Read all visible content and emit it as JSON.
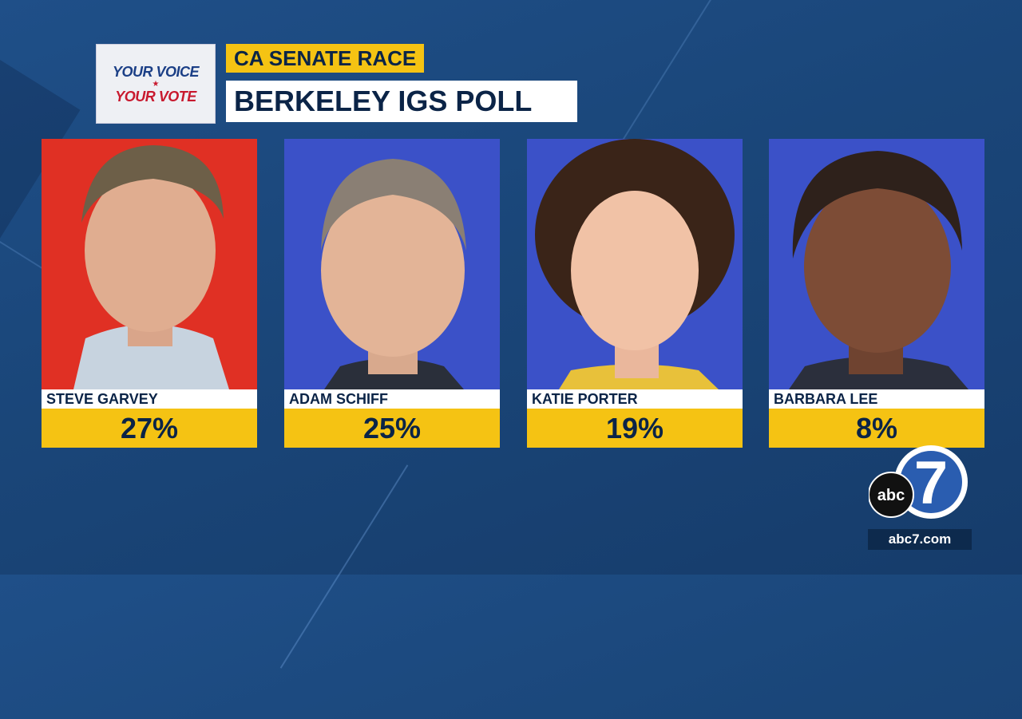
{
  "logo": {
    "line1": "YOUR VOICE",
    "line2": "YOUR VOTE"
  },
  "header": {
    "race_label": "CA SENATE RACE",
    "poll_title": "BERKELEY IGS POLL"
  },
  "candidates": [
    {
      "name": "STEVE GARVEY",
      "percent": "27%",
      "background_color": "#e03024"
    },
    {
      "name": "ADAM SCHIFF",
      "percent": "25%",
      "background_color": "#3b51c8"
    },
    {
      "name": "KATIE PORTER",
      "percent": "19%",
      "background_color": "#3b51c8"
    },
    {
      "name": "BARBARA LEE",
      "percent": "8%",
      "background_color": "#3b51c8"
    }
  ],
  "station": {
    "logo_text": "abc",
    "channel": "7",
    "website": "abc7.com"
  },
  "colors": {
    "accent_yellow": "#f5c313",
    "navy_text": "#0b2447",
    "background_blue": "#1a4679"
  }
}
